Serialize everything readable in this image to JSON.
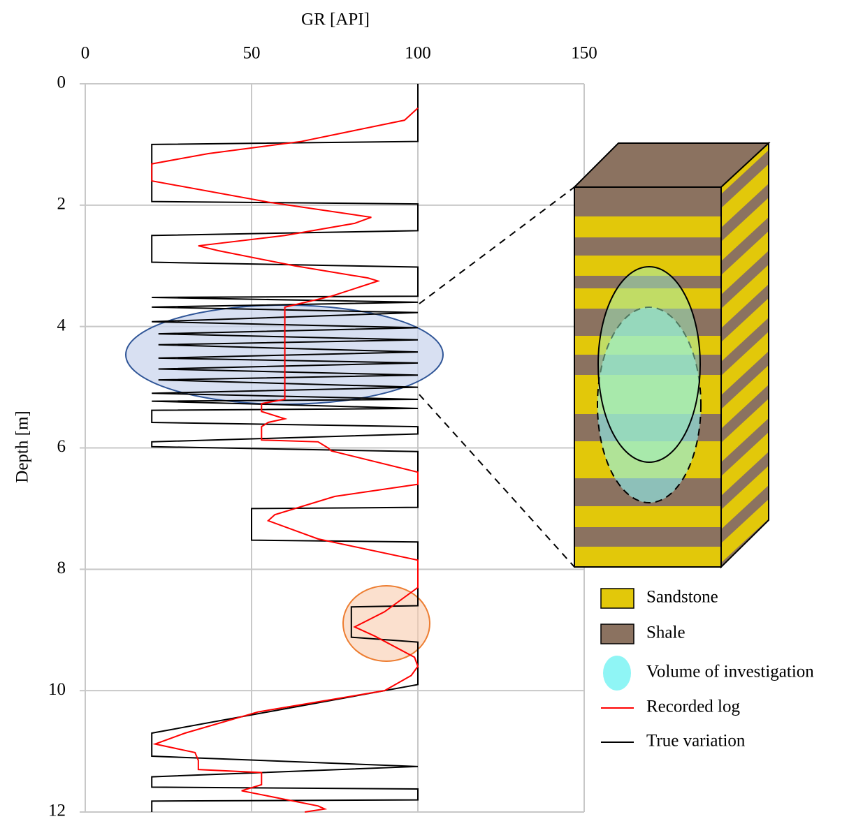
{
  "chart_data": {
    "type": "well-log",
    "xlabel": "GR [API]",
    "ylabel": "Depth [m]",
    "xlim": [
      0,
      150
    ],
    "xticks": [
      0,
      50,
      100,
      150
    ],
    "ylim": [
      0,
      12
    ],
    "yticks": [
      0,
      2,
      4,
      6,
      8,
      10,
      12
    ],
    "grid": true,
    "y_inverted": true,
    "series": [
      {
        "name": "Recorded log",
        "color": "#ff0000",
        "depth": [
          0.4,
          0.6,
          0.95,
          1.15,
          1.32,
          1.6,
          1.95,
          2.2,
          2.3,
          2.5,
          2.67,
          2.75,
          3.0,
          3.2,
          3.25,
          3.5,
          3.68,
          5.2,
          5.27,
          5.4,
          5.52,
          5.58,
          5.65,
          5.87,
          5.9,
          6.0,
          6.05,
          6.4,
          6.6,
          6.8,
          7.1,
          7.2,
          7.5,
          7.85,
          8.3,
          8.7,
          8.95,
          9.1,
          9.45,
          9.6,
          9.75,
          10.0,
          10.35,
          10.7,
          10.88,
          11.02,
          11.15,
          11.3,
          11.35,
          11.55,
          11.65,
          11.9,
          11.95,
          12.0
        ],
        "values": [
          100,
          96,
          65,
          37,
          20,
          20,
          55,
          86,
          81,
          60,
          34,
          40,
          63,
          85,
          88,
          74,
          60,
          60,
          53,
          53,
          60,
          55,
          53,
          53,
          70,
          73,
          74,
          100,
          100,
          75,
          57,
          55,
          70,
          100,
          100,
          90,
          81,
          87,
          99,
          100,
          98,
          90,
          52,
          30,
          21,
          33,
          34,
          34,
          53,
          53,
          47,
          70,
          72,
          66
        ]
      },
      {
        "name": "True variation",
        "color": "#000000",
        "depth": [
          0,
          0.95,
          1.0,
          1.94,
          1.98,
          2.42,
          2.5,
          2.94,
          3.02,
          3.5,
          3.52,
          3.6,
          3.68,
          3.77,
          3.92,
          4.02,
          4.12,
          4.22,
          4.3,
          4.42,
          4.52,
          4.6,
          4.7,
          4.8,
          4.88,
          5.0,
          5.1,
          5.2,
          5.23,
          5.35,
          5.38,
          5.5,
          5.58,
          5.65,
          5.77,
          5.9,
          5.98,
          6.06,
          6.98,
          7.0,
          7.52,
          7.55,
          8.6,
          8.62,
          9.12,
          9.2,
          9.9,
          10.7,
          11.08,
          11.25,
          11.42,
          11.59,
          11.62,
          11.8,
          11.82,
          12.0
        ],
        "values": [
          100,
          100,
          20,
          20,
          100,
          100,
          20,
          20,
          100,
          100,
          20,
          100,
          20,
          100,
          20,
          100,
          22,
          100,
          22,
          100,
          22,
          100,
          22,
          100,
          22,
          100,
          20,
          100,
          20,
          100,
          20,
          20,
          20,
          100,
          100,
          20,
          20,
          100,
          100,
          50,
          50,
          100,
          100,
          80,
          80,
          100,
          100,
          20,
          20,
          100,
          20,
          20,
          100,
          100,
          20,
          20
        ]
      }
    ],
    "legend_items": [
      {
        "name": "Sandstone",
        "color": "#e2c80a"
      },
      {
        "name": "Shale",
        "color": "#8b7260"
      },
      {
        "name": "Volume of investigation",
        "color": "#8ff5f5"
      }
    ]
  }
}
